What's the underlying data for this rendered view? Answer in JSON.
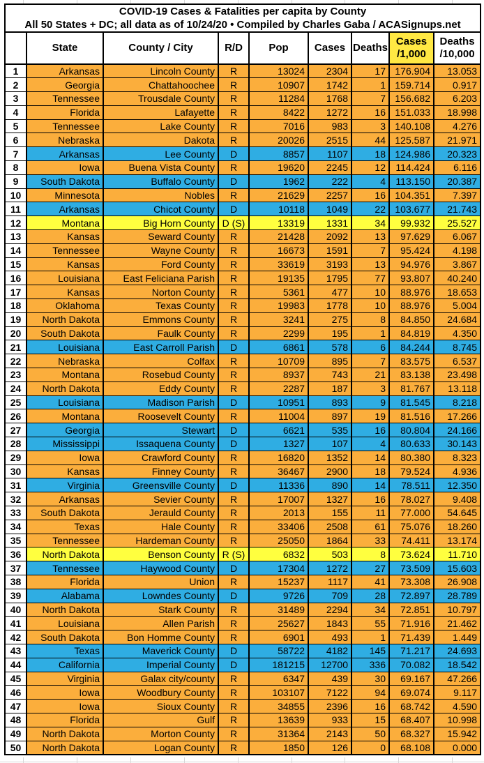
{
  "colors": {
    "republican_row": "#FBAE3C",
    "democratic_row": "#2FADE3",
    "swing_row": "#FFFF3F",
    "cases_header_highlight": "#FFE843",
    "border": "#000000",
    "gridline": "#D7D7D7"
  },
  "chart_data": {
    "type": "table",
    "title": "COVID-19 Cases & Fatalities per capita by County",
    "subtitle": "All 50 States + DC; all data as of 10/24/20 • Compiled by Charles Gaba / ACASignups.net",
    "columns": {
      "rank": "",
      "state": "State",
      "county": "County / City",
      "rd": "R/D",
      "pop": "Pop",
      "cases": "Cases",
      "deaths": "Deaths",
      "cases_per_1000_line1": "Cases",
      "cases_per_1000_line2": "/1,000",
      "deaths_per_10000_line1": "Deaths",
      "deaths_per_10000_line2": "/10,000"
    },
    "rows": [
      {
        "rank": 1,
        "state": "Arkansas",
        "county": "Lincoln County",
        "rd": "R",
        "party": "R",
        "pop": 13024,
        "cases": 2304,
        "deaths": 17,
        "cases_per_1000": "176.904",
        "deaths_per_10000": "13.053"
      },
      {
        "rank": 2,
        "state": "Georgia",
        "county": "Chattahoochee",
        "rd": "R",
        "party": "R",
        "pop": 10907,
        "cases": 1742,
        "deaths": 1,
        "cases_per_1000": "159.714",
        "deaths_per_10000": "0.917"
      },
      {
        "rank": 3,
        "state": "Tennessee",
        "county": "Trousdale County",
        "rd": "R",
        "party": "R",
        "pop": 11284,
        "cases": 1768,
        "deaths": 7,
        "cases_per_1000": "156.682",
        "deaths_per_10000": "6.203"
      },
      {
        "rank": 4,
        "state": "Florida",
        "county": "Lafayette",
        "rd": "R",
        "party": "R",
        "pop": 8422,
        "cases": 1272,
        "deaths": 16,
        "cases_per_1000": "151.033",
        "deaths_per_10000": "18.998"
      },
      {
        "rank": 5,
        "state": "Tennessee",
        "county": "Lake County",
        "rd": "R",
        "party": "R",
        "pop": 7016,
        "cases": 983,
        "deaths": 3,
        "cases_per_1000": "140.108",
        "deaths_per_10000": "4.276"
      },
      {
        "rank": 6,
        "state": "Nebraska",
        "county": "Dakota",
        "rd": "R",
        "party": "R",
        "pop": 20026,
        "cases": 2515,
        "deaths": 44,
        "cases_per_1000": "125.587",
        "deaths_per_10000": "21.971"
      },
      {
        "rank": 7,
        "state": "Arkansas",
        "county": "Lee County",
        "rd": "D",
        "party": "D",
        "pop": 8857,
        "cases": 1107,
        "deaths": 18,
        "cases_per_1000": "124.986",
        "deaths_per_10000": "20.323"
      },
      {
        "rank": 8,
        "state": "Iowa",
        "county": "Buena Vista County",
        "rd": "R",
        "party": "R",
        "pop": 19620,
        "cases": 2245,
        "deaths": 12,
        "cases_per_1000": "114.424",
        "deaths_per_10000": "6.116"
      },
      {
        "rank": 9,
        "state": "South Dakota",
        "county": "Buffalo County",
        "rd": "D",
        "party": "D",
        "pop": 1962,
        "cases": 222,
        "deaths": 4,
        "cases_per_1000": "113.150",
        "deaths_per_10000": "20.387"
      },
      {
        "rank": 10,
        "state": "Minnesota",
        "county": "Nobles",
        "rd": "R",
        "party": "R",
        "pop": 21629,
        "cases": 2257,
        "deaths": 16,
        "cases_per_1000": "104.351",
        "deaths_per_10000": "7.397"
      },
      {
        "rank": 11,
        "state": "Arkansas",
        "county": "Chicot County",
        "rd": "D",
        "party": "D",
        "pop": 10118,
        "cases": 1049,
        "deaths": 22,
        "cases_per_1000": "103.677",
        "deaths_per_10000": "21.743"
      },
      {
        "rank": 12,
        "state": "Montana",
        "county": "Big Horn County",
        "rd": "D (S)",
        "party": "S",
        "pop": 13319,
        "cases": 1331,
        "deaths": 34,
        "cases_per_1000": "99.932",
        "deaths_per_10000": "25.527"
      },
      {
        "rank": 13,
        "state": "Kansas",
        "county": "Seward County",
        "rd": "R",
        "party": "R",
        "pop": 21428,
        "cases": 2092,
        "deaths": 13,
        "cases_per_1000": "97.629",
        "deaths_per_10000": "6.067"
      },
      {
        "rank": 14,
        "state": "Tennessee",
        "county": "Wayne County",
        "rd": "R",
        "party": "R",
        "pop": 16673,
        "cases": 1591,
        "deaths": 7,
        "cases_per_1000": "95.424",
        "deaths_per_10000": "4.198"
      },
      {
        "rank": 15,
        "state": "Kansas",
        "county": "Ford County",
        "rd": "R",
        "party": "R",
        "pop": 33619,
        "cases": 3193,
        "deaths": 13,
        "cases_per_1000": "94.976",
        "deaths_per_10000": "3.867"
      },
      {
        "rank": 16,
        "state": "Louisiana",
        "county": "East Feliciana Parish",
        "rd": "R",
        "party": "R",
        "pop": 19135,
        "cases": 1795,
        "deaths": 77,
        "cases_per_1000": "93.807",
        "deaths_per_10000": "40.240"
      },
      {
        "rank": 17,
        "state": "Kansas",
        "county": "Norton County",
        "rd": "R",
        "party": "R",
        "pop": 5361,
        "cases": 477,
        "deaths": 10,
        "cases_per_1000": "88.976",
        "deaths_per_10000": "18.653"
      },
      {
        "rank": 18,
        "state": "Oklahoma",
        "county": "Texas County",
        "rd": "R",
        "party": "R",
        "pop": 19983,
        "cases": 1778,
        "deaths": 10,
        "cases_per_1000": "88.976",
        "deaths_per_10000": "5.004"
      },
      {
        "rank": 19,
        "state": "North Dakota",
        "county": "Emmons County",
        "rd": "R",
        "party": "R",
        "pop": 3241,
        "cases": 275,
        "deaths": 8,
        "cases_per_1000": "84.850",
        "deaths_per_10000": "24.684"
      },
      {
        "rank": 20,
        "state": "South Dakota",
        "county": "Faulk County",
        "rd": "R",
        "party": "R",
        "pop": 2299,
        "cases": 195,
        "deaths": 1,
        "cases_per_1000": "84.819",
        "deaths_per_10000": "4.350"
      },
      {
        "rank": 21,
        "state": "Louisiana",
        "county": "East Carroll Parish",
        "rd": "D",
        "party": "D",
        "pop": 6861,
        "cases": 578,
        "deaths": 6,
        "cases_per_1000": "84.244",
        "deaths_per_10000": "8.745"
      },
      {
        "rank": 22,
        "state": "Nebraska",
        "county": "Colfax",
        "rd": "R",
        "party": "R",
        "pop": 10709,
        "cases": 895,
        "deaths": 7,
        "cases_per_1000": "83.575",
        "deaths_per_10000": "6.537"
      },
      {
        "rank": 23,
        "state": "Montana",
        "county": "Rosebud County",
        "rd": "R",
        "party": "R",
        "pop": 8937,
        "cases": 743,
        "deaths": 21,
        "cases_per_1000": "83.138",
        "deaths_per_10000": "23.498"
      },
      {
        "rank": 24,
        "state": "North Dakota",
        "county": "Eddy County",
        "rd": "R",
        "party": "R",
        "pop": 2287,
        "cases": 187,
        "deaths": 3,
        "cases_per_1000": "81.767",
        "deaths_per_10000": "13.118"
      },
      {
        "rank": 25,
        "state": "Louisiana",
        "county": "Madison Parish",
        "rd": "D",
        "party": "D",
        "pop": 10951,
        "cases": 893,
        "deaths": 9,
        "cases_per_1000": "81.545",
        "deaths_per_10000": "8.218"
      },
      {
        "rank": 26,
        "state": "Montana",
        "county": "Roosevelt County",
        "rd": "R",
        "party": "R",
        "pop": 11004,
        "cases": 897,
        "deaths": 19,
        "cases_per_1000": "81.516",
        "deaths_per_10000": "17.266"
      },
      {
        "rank": 27,
        "state": "Georgia",
        "county": "Stewart",
        "rd": "D",
        "party": "D",
        "pop": 6621,
        "cases": 535,
        "deaths": 16,
        "cases_per_1000": "80.804",
        "deaths_per_10000": "24.166"
      },
      {
        "rank": 28,
        "state": "Mississippi",
        "county": "Issaquena County",
        "rd": "D",
        "party": "D",
        "pop": 1327,
        "cases": 107,
        "deaths": 4,
        "cases_per_1000": "80.633",
        "deaths_per_10000": "30.143"
      },
      {
        "rank": 29,
        "state": "Iowa",
        "county": "Crawford County",
        "rd": "R",
        "party": "R",
        "pop": 16820,
        "cases": 1352,
        "deaths": 14,
        "cases_per_1000": "80.380",
        "deaths_per_10000": "8.323"
      },
      {
        "rank": 30,
        "state": "Kansas",
        "county": "Finney County",
        "rd": "R",
        "party": "R",
        "pop": 36467,
        "cases": 2900,
        "deaths": 18,
        "cases_per_1000": "79.524",
        "deaths_per_10000": "4.936"
      },
      {
        "rank": 31,
        "state": "Virginia",
        "county": "Greensville County",
        "rd": "D",
        "party": "D",
        "pop": 11336,
        "cases": 890,
        "deaths": 14,
        "cases_per_1000": "78.511",
        "deaths_per_10000": "12.350"
      },
      {
        "rank": 32,
        "state": "Arkansas",
        "county": "Sevier County",
        "rd": "R",
        "party": "R",
        "pop": 17007,
        "cases": 1327,
        "deaths": 16,
        "cases_per_1000": "78.027",
        "deaths_per_10000": "9.408"
      },
      {
        "rank": 33,
        "state": "South Dakota",
        "county": "Jerauld County",
        "rd": "R",
        "party": "R",
        "pop": 2013,
        "cases": 155,
        "deaths": 11,
        "cases_per_1000": "77.000",
        "deaths_per_10000": "54.645"
      },
      {
        "rank": 34,
        "state": "Texas",
        "county": "Hale County",
        "rd": "R",
        "party": "R",
        "pop": 33406,
        "cases": 2508,
        "deaths": 61,
        "cases_per_1000": "75.076",
        "deaths_per_10000": "18.260"
      },
      {
        "rank": 35,
        "state": "Tennessee",
        "county": "Hardeman County",
        "rd": "R",
        "party": "R",
        "pop": 25050,
        "cases": 1864,
        "deaths": 33,
        "cases_per_1000": "74.411",
        "deaths_per_10000": "13.174"
      },
      {
        "rank": 36,
        "state": "North Dakota",
        "county": "Benson County",
        "rd": "R (S)",
        "party": "S",
        "pop": 6832,
        "cases": 503,
        "deaths": 8,
        "cases_per_1000": "73.624",
        "deaths_per_10000": "11.710"
      },
      {
        "rank": 37,
        "state": "Tennessee",
        "county": "Haywood County",
        "rd": "D",
        "party": "D",
        "pop": 17304,
        "cases": 1272,
        "deaths": 27,
        "cases_per_1000": "73.509",
        "deaths_per_10000": "15.603"
      },
      {
        "rank": 38,
        "state": "Florida",
        "county": "Union",
        "rd": "R",
        "party": "R",
        "pop": 15237,
        "cases": 1117,
        "deaths": 41,
        "cases_per_1000": "73.308",
        "deaths_per_10000": "26.908"
      },
      {
        "rank": 39,
        "state": "Alabama",
        "county": "Lowndes County",
        "rd": "D",
        "party": "D",
        "pop": 9726,
        "cases": 709,
        "deaths": 28,
        "cases_per_1000": "72.897",
        "deaths_per_10000": "28.789"
      },
      {
        "rank": 40,
        "state": "North Dakota",
        "county": "Stark County",
        "rd": "R",
        "party": "R",
        "pop": 31489,
        "cases": 2294,
        "deaths": 34,
        "cases_per_1000": "72.851",
        "deaths_per_10000": "10.797"
      },
      {
        "rank": 41,
        "state": "Louisiana",
        "county": "Allen Parish",
        "rd": "R",
        "party": "R",
        "pop": 25627,
        "cases": 1843,
        "deaths": 55,
        "cases_per_1000": "71.916",
        "deaths_per_10000": "21.462"
      },
      {
        "rank": 42,
        "state": "South Dakota",
        "county": "Bon Homme County",
        "rd": "R",
        "party": "R",
        "pop": 6901,
        "cases": 493,
        "deaths": 1,
        "cases_per_1000": "71.439",
        "deaths_per_10000": "1.449"
      },
      {
        "rank": 43,
        "state": "Texas",
        "county": "Maverick County",
        "rd": "D",
        "party": "D",
        "pop": 58722,
        "cases": 4182,
        "deaths": 145,
        "cases_per_1000": "71.217",
        "deaths_per_10000": "24.693"
      },
      {
        "rank": 44,
        "state": "California",
        "county": "Imperial County",
        "rd": "D",
        "party": "D",
        "pop": 181215,
        "cases": 12700,
        "deaths": 336,
        "cases_per_1000": "70.082",
        "deaths_per_10000": "18.542"
      },
      {
        "rank": 45,
        "state": "Virginia",
        "county": "Galax city/county",
        "rd": "R",
        "party": "R",
        "pop": 6347,
        "cases": 439,
        "deaths": 30,
        "cases_per_1000": "69.167",
        "deaths_per_10000": "47.266"
      },
      {
        "rank": 46,
        "state": "Iowa",
        "county": "Woodbury County",
        "rd": "R",
        "party": "R",
        "pop": 103107,
        "cases": 7122,
        "deaths": 94,
        "cases_per_1000": "69.074",
        "deaths_per_10000": "9.117"
      },
      {
        "rank": 47,
        "state": "Iowa",
        "county": "Sioux County",
        "rd": "R",
        "party": "R",
        "pop": 34855,
        "cases": 2396,
        "deaths": 16,
        "cases_per_1000": "68.742",
        "deaths_per_10000": "4.590"
      },
      {
        "rank": 48,
        "state": "Florida",
        "county": "Gulf",
        "rd": "R",
        "party": "R",
        "pop": 13639,
        "cases": 933,
        "deaths": 15,
        "cases_per_1000": "68.407",
        "deaths_per_10000": "10.998"
      },
      {
        "rank": 49,
        "state": "North Dakota",
        "county": "Morton County",
        "rd": "R",
        "party": "R",
        "pop": 31364,
        "cases": 2143,
        "deaths": 50,
        "cases_per_1000": "68.327",
        "deaths_per_10000": "15.942"
      },
      {
        "rank": 50,
        "state": "North Dakota",
        "county": "Logan County",
        "rd": "R",
        "party": "R",
        "pop": 1850,
        "cases": 126,
        "deaths": 0,
        "cases_per_1000": "68.108",
        "deaths_per_10000": "0.000"
      }
    ]
  }
}
